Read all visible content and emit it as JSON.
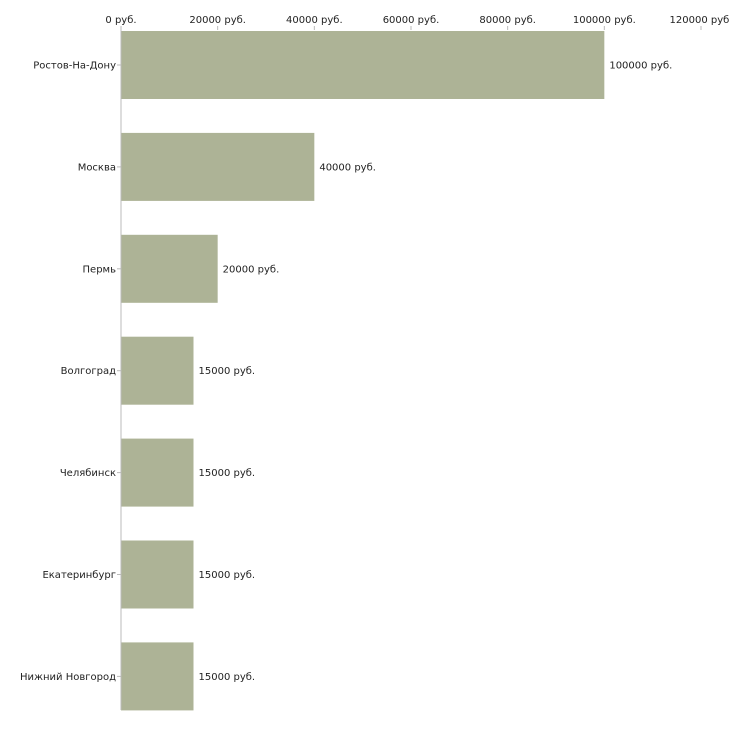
{
  "chart_data": {
    "type": "bar",
    "orientation": "horizontal",
    "title": "",
    "xlabel": "",
    "ylabel": "",
    "xlim": [
      0,
      120000
    ],
    "x_ticks": [
      0,
      20000,
      40000,
      60000,
      80000,
      100000,
      120000
    ],
    "tick_labels": [
      "0 руб.",
      "20000 руб.",
      "40000 руб.",
      "60000 руб.",
      "80000 руб.",
      "100000 руб.",
      "120000 руб."
    ],
    "categories": [
      "Ростов-На-Дону",
      "Москва",
      "Пермь",
      "Волгоград",
      "Челябинск",
      "Екатеринбург",
      "Нижний Новгород"
    ],
    "values": [
      100000,
      40000,
      20000,
      15000,
      15000,
      15000,
      15000
    ],
    "value_labels": [
      "100000 руб.",
      "40000 руб.",
      "20000 руб.",
      "15000 руб.",
      "15000 руб.",
      "15000 руб.",
      "15000 руб."
    ],
    "bar_color": "#adb396",
    "axis_color": "#bbbbbb",
    "grid": false,
    "legend": "none"
  }
}
